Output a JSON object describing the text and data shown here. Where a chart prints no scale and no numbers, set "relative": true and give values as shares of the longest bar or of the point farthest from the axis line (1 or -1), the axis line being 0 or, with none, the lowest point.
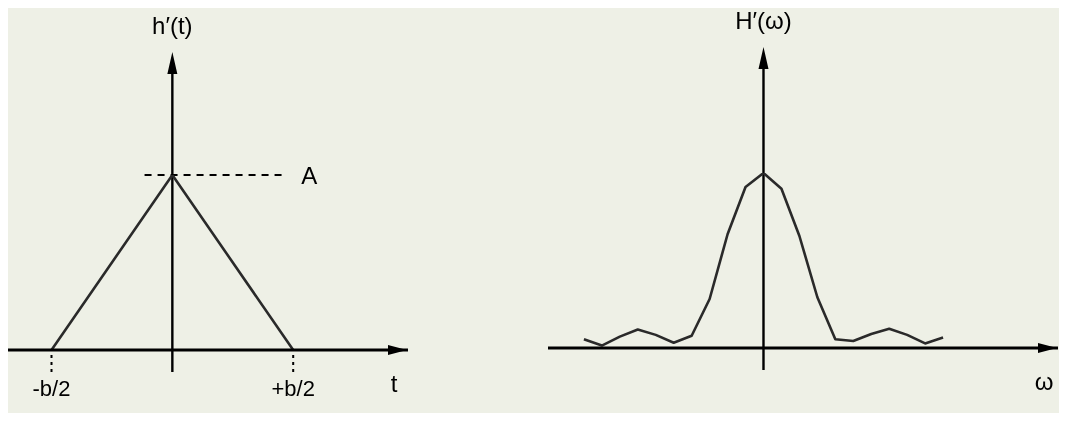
{
  "chart_data": [
    {
      "type": "line",
      "xlabel": "t",
      "ylabel": "h′(t)",
      "relative": true,
      "marker": "none",
      "categories": [
        "-b/2",
        null,
        "+b/2"
      ],
      "series": [
        {
          "color": "#2a2a2a",
          "values": [
            0,
            1,
            0
          ]
        }
      ],
      "ref_lines": [
        {
          "axis": "y",
          "value": 1,
          "label": "A",
          "line_style": "dashed"
        }
      ]
    },
    {
      "type": "line",
      "xlabel": "ω",
      "ylabel": "H′(ω)",
      "relative": true,
      "marker": "none",
      "categories": [
        null,
        null,
        null,
        null,
        null,
        null,
        null,
        null,
        null,
        null,
        null,
        null,
        null,
        null,
        null,
        null,
        null,
        null,
        null,
        null,
        null
      ],
      "series": [
        {
          "color": "#2a2a2a",
          "values": [
            0.05,
            0.014,
            0.065,
            0.106,
            0.075,
            0.03,
            0.07,
            0.28,
            0.65,
            0.92,
            1,
            0.91,
            0.64,
            0.29,
            0.05,
            0.04,
            0.08,
            0.11,
            0.075,
            0.026,
            0.06
          ]
        }
      ]
    }
  ]
}
